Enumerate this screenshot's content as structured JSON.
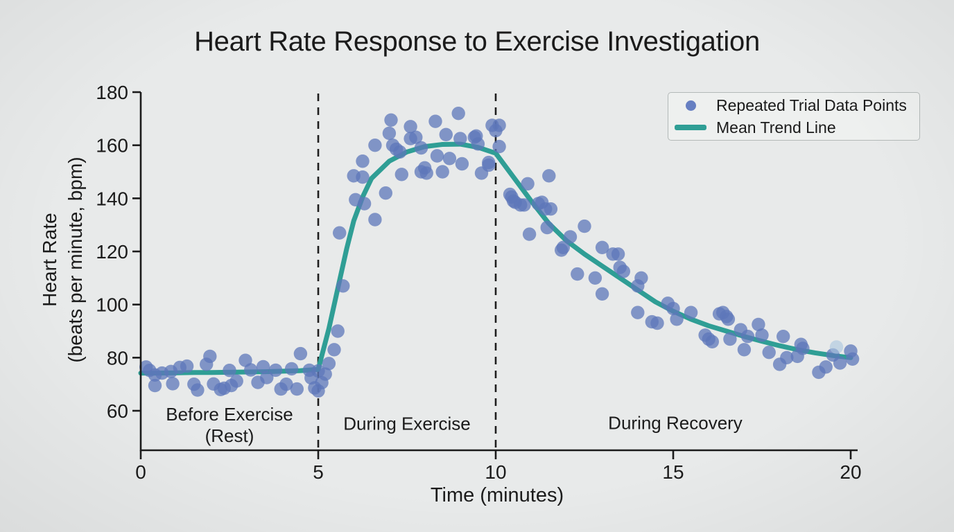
{
  "colors": {
    "background": "#e8eaea",
    "axis": "#1b1b1b",
    "text": "#1b1b1b",
    "divider": "#1e1e1e",
    "dot": "#5d77ba",
    "dot_solid": "#667fc2",
    "dot_light": "#a9c4dd",
    "trend": "#2f9e95",
    "legend_bg": "#eef0ef",
    "legend_border": "#b3b9b8"
  },
  "chart_data": {
    "type": "scatter",
    "title": "Heart Rate Response to Exercise Investigation",
    "xlabel": "Time (minutes)",
    "ylabel": "Heart Rate",
    "ylabel_sub": "(beats per minute, bpm)",
    "xlim": [
      0,
      20
    ],
    "ylim": [
      60,
      180
    ],
    "x_ticks": [
      0,
      5,
      10,
      15,
      20
    ],
    "y_ticks": [
      60,
      80,
      100,
      120,
      140,
      160,
      180
    ],
    "grid": false,
    "legend_position": "upper right",
    "legend": [
      {
        "label": "Repeated Trial Data Points",
        "marker": "dot",
        "color": "#667fc2"
      },
      {
        "label": "Mean Trend Line",
        "marker": "line",
        "color": "#2f9e95"
      }
    ],
    "phase_dividers_x": [
      5,
      10
    ],
    "phases": [
      {
        "label": "Before Exercise",
        "sublabel": "(Rest)",
        "x_center": 2.5
      },
      {
        "label": "During Exercise",
        "sublabel": "",
        "x_center": 7.5
      },
      {
        "label": "During Recovery",
        "sublabel": "",
        "x_center": 15.05
      }
    ],
    "series": [
      {
        "name": "Repeated Trial Data Points",
        "type": "scatter",
        "points": [
          [
            0.15,
            76.5
          ],
          [
            0.25,
            75.2
          ],
          [
            0.4,
            69.5
          ],
          [
            0.4,
            73.5
          ],
          [
            0.6,
            74.2
          ],
          [
            0.85,
            74.8
          ],
          [
            0.9,
            70.2
          ],
          [
            1.1,
            76.3
          ],
          [
            1.3,
            76.8
          ],
          [
            1.5,
            70.0
          ],
          [
            1.6,
            67.8
          ],
          [
            1.85,
            77.5
          ],
          [
            1.95,
            80.5
          ],
          [
            2.05,
            70.1
          ],
          [
            2.25,
            68.0
          ],
          [
            2.35,
            68.5
          ],
          [
            2.5,
            75.2
          ],
          [
            2.55,
            69.5
          ],
          [
            2.7,
            71.2
          ],
          [
            2.95,
            79.0
          ],
          [
            3.1,
            75.4
          ],
          [
            3.3,
            70.7
          ],
          [
            3.45,
            76.6
          ],
          [
            3.55,
            72.5
          ],
          [
            3.8,
            75.3
          ],
          [
            3.95,
            68.2
          ],
          [
            4.1,
            70.0
          ],
          [
            4.25,
            75.8
          ],
          [
            4.4,
            68.2
          ],
          [
            4.5,
            81.5
          ],
          [
            4.75,
            75.3
          ],
          [
            4.8,
            72.4
          ],
          [
            4.9,
            68.6
          ],
          [
            5.0,
            67.5
          ],
          [
            5.0,
            75.0
          ],
          [
            5.1,
            70.6
          ],
          [
            5.2,
            73.8
          ],
          [
            5.3,
            77.8
          ],
          [
            5.45,
            83.0
          ],
          [
            5.55,
            90.0
          ],
          [
            5.6,
            127.0
          ],
          [
            5.7,
            107.0
          ],
          [
            6.0,
            148.5
          ],
          [
            6.05,
            139.5
          ],
          [
            6.25,
            148.0
          ],
          [
            6.25,
            154.0
          ],
          [
            6.3,
            138.0
          ],
          [
            6.6,
            132.0
          ],
          [
            6.6,
            160.0
          ],
          [
            6.9,
            142.0
          ],
          [
            7.0,
            164.5
          ],
          [
            7.05,
            169.5
          ],
          [
            7.1,
            160.0
          ],
          [
            7.2,
            158.5
          ],
          [
            7.3,
            157.5
          ],
          [
            7.35,
            149.0
          ],
          [
            7.6,
            167.0
          ],
          [
            7.6,
            162.5
          ],
          [
            7.75,
            163.0
          ],
          [
            7.9,
            159.0
          ],
          [
            7.9,
            150.0
          ],
          [
            8.0,
            151.5
          ],
          [
            8.05,
            149.5
          ],
          [
            8.3,
            169.0
          ],
          [
            8.35,
            156.0
          ],
          [
            8.5,
            150.0
          ],
          [
            8.6,
            164.0
          ],
          [
            8.7,
            155.0
          ],
          [
            8.95,
            172.0
          ],
          [
            9.0,
            162.5
          ],
          [
            9.05,
            153.0
          ],
          [
            9.4,
            163.0
          ],
          [
            9.45,
            163.5
          ],
          [
            9.5,
            160.5
          ],
          [
            9.6,
            149.5
          ],
          [
            9.8,
            153.5
          ],
          [
            9.8,
            152.5
          ],
          [
            9.9,
            167.5
          ],
          [
            10.0,
            165.5
          ],
          [
            10.1,
            167.5
          ],
          [
            10.1,
            159.5
          ],
          [
            10.4,
            141.5
          ],
          [
            10.45,
            140.5
          ],
          [
            10.5,
            139.0
          ],
          [
            10.55,
            138.5
          ],
          [
            10.7,
            137.5
          ],
          [
            10.8,
            137.5
          ],
          [
            10.9,
            145.5
          ],
          [
            10.95,
            126.5
          ],
          [
            11.2,
            138.0
          ],
          [
            11.3,
            138.5
          ],
          [
            11.4,
            136.0
          ],
          [
            11.45,
            129.0
          ],
          [
            11.5,
            148.5
          ],
          [
            11.55,
            136.0
          ],
          [
            11.85,
            120.5
          ],
          [
            11.9,
            121.5
          ],
          [
            12.1,
            125.5
          ],
          [
            12.3,
            111.5
          ],
          [
            12.5,
            129.5
          ],
          [
            12.8,
            110.0
          ],
          [
            13.0,
            121.5
          ],
          [
            13.0,
            104.0
          ],
          [
            13.3,
            119.0
          ],
          [
            13.45,
            119.0
          ],
          [
            13.5,
            114.0
          ],
          [
            13.6,
            112.5
          ],
          [
            14.0,
            107.0
          ],
          [
            14.0,
            97.0
          ],
          [
            14.1,
            110.0
          ],
          [
            14.4,
            93.5
          ],
          [
            14.55,
            93.0
          ],
          [
            14.85,
            100.5
          ],
          [
            15.0,
            98.5
          ],
          [
            15.1,
            94.5
          ],
          [
            15.5,
            97.0
          ],
          [
            15.9,
            88.5
          ],
          [
            16.0,
            87.0
          ],
          [
            16.1,
            86.0
          ],
          [
            16.3,
            96.5
          ],
          [
            16.4,
            97.0
          ],
          [
            16.5,
            95.5
          ],
          [
            16.55,
            94.5
          ],
          [
            16.6,
            87.0
          ],
          [
            16.9,
            90.5
          ],
          [
            17.0,
            83.0
          ],
          [
            17.1,
            88.0
          ],
          [
            17.4,
            92.5
          ],
          [
            17.5,
            88.5
          ],
          [
            17.7,
            82.0
          ],
          [
            18.0,
            77.5
          ],
          [
            18.1,
            88.0
          ],
          [
            18.2,
            80.0
          ],
          [
            18.5,
            80.5
          ],
          [
            18.6,
            85.0
          ],
          [
            18.65,
            83.5
          ],
          [
            19.1,
            74.5
          ],
          [
            19.3,
            76.5
          ],
          [
            19.5,
            81.0
          ],
          [
            19.7,
            78.0
          ],
          [
            20.0,
            82.5
          ],
          [
            20.05,
            79.5
          ]
        ]
      },
      {
        "name": "Mean Trend Line",
        "type": "line",
        "points": [
          [
            0,
            74.2
          ],
          [
            0.5,
            74.2
          ],
          [
            1,
            74.3
          ],
          [
            1.5,
            74.4
          ],
          [
            2,
            74.4
          ],
          [
            2.5,
            74.5
          ],
          [
            3,
            74.6
          ],
          [
            3.5,
            74.7
          ],
          [
            4,
            74.9
          ],
          [
            4.5,
            75.1
          ],
          [
            5,
            75.6
          ],
          [
            5.3,
            91
          ],
          [
            5.6,
            109
          ],
          [
            5.8,
            121
          ],
          [
            6,
            131.5
          ],
          [
            6.25,
            140.5
          ],
          [
            6.5,
            147.5
          ],
          [
            7,
            154
          ],
          [
            7.5,
            157.5
          ],
          [
            8,
            159.5
          ],
          [
            8.5,
            160.3
          ],
          [
            9,
            160.4
          ],
          [
            9.5,
            159.2
          ],
          [
            10,
            157
          ],
          [
            10.5,
            148
          ],
          [
            11,
            139
          ],
          [
            11.5,
            130.5
          ],
          [
            12,
            124
          ],
          [
            12.5,
            119
          ],
          [
            13,
            114.5
          ],
          [
            13.5,
            110
          ],
          [
            14,
            105.5
          ],
          [
            14.5,
            101
          ],
          [
            15,
            97.5
          ],
          [
            15.5,
            94.5
          ],
          [
            16,
            92
          ],
          [
            16.5,
            90
          ],
          [
            17,
            88
          ],
          [
            17.5,
            86.2
          ],
          [
            18,
            84.5
          ],
          [
            18.5,
            83
          ],
          [
            19,
            81.8
          ],
          [
            19.5,
            80.8
          ],
          [
            20,
            80
          ]
        ]
      }
    ],
    "light_points": [
      [
        19.6,
        84
      ]
    ]
  }
}
